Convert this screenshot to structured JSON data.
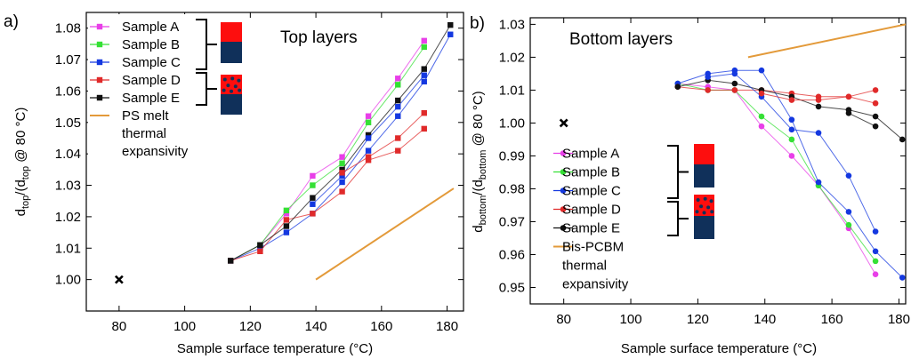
{
  "chart_data": [
    {
      "type": "line",
      "panel_label": "a)",
      "title": "Top layers",
      "xlabel": "Sample surface temperature (°C)",
      "ylabel": {
        "d1": "d",
        "s1": "top",
        "m": "/(d",
        "s2": "top",
        "tail": " @ 80 °C)"
      },
      "xlim": [
        70,
        185
      ],
      "ylim": [
        0.99,
        1.085
      ],
      "x_ticks": [
        80,
        100,
        120,
        140,
        160,
        180
      ],
      "y_ticks": [
        1.0,
        1.01,
        1.02,
        1.03,
        1.04,
        1.05,
        1.06,
        1.07,
        1.08
      ],
      "y_decimals": 2,
      "grid": false,
      "legend_position": "top-left",
      "reference_point": {
        "x": 80,
        "y": 1.0,
        "marker": "x"
      },
      "series": [
        {
          "name": "Sample A",
          "color": "#e83fe8",
          "marker": "square",
          "points": [
            [
              114,
              1.006
            ],
            [
              123,
              1.011
            ],
            [
              131,
              1.021
            ],
            [
              139,
              1.033
            ],
            [
              148,
              1.039
            ],
            [
              156,
              1.052
            ],
            [
              165,
              1.064
            ],
            [
              173,
              1.076
            ]
          ]
        },
        {
          "name": "Sample B",
          "color": "#35e035",
          "marker": "square",
          "points": [
            [
              114,
              1.006
            ],
            [
              123,
              1.011
            ],
            [
              131,
              1.022
            ],
            [
              139,
              1.03
            ],
            [
              148,
              1.037
            ],
            [
              156,
              1.05
            ],
            [
              165,
              1.062
            ],
            [
              173,
              1.074
            ]
          ]
        },
        {
          "name": "Sample C",
          "color": "#1438e0",
          "marker": "square",
          "points": [
            [
              114,
              1.006
            ],
            [
              123,
              1.01
            ],
            [
              131,
              1.015
            ],
            [
              139,
              1.021
            ],
            [
              148,
              1.031
            ],
            [
              156,
              1.041
            ],
            [
              165,
              1.052
            ],
            [
              173,
              1.063
            ],
            [
              181,
              1.078
            ]
          ]
        },
        {
          "name": "Sample D",
          "color": "#e02a2a",
          "marker": "square",
          "points": [
            [
              114,
              1.006
            ],
            [
              123,
              1.009
            ],
            [
              131,
              1.019
            ],
            [
              139,
              1.021
            ],
            [
              148,
              1.028
            ],
            [
              156,
              1.038
            ],
            [
              165,
              1.041
            ],
            [
              173,
              1.048
            ]
          ]
        },
        {
          "name": "Sample E",
          "color": "#111111",
          "marker": "square",
          "points": [
            [
              114,
              1.006
            ],
            [
              123,
              1.011
            ],
            [
              131,
              1.017
            ],
            [
              139,
              1.026
            ],
            [
              148,
              1.035
            ],
            [
              156,
              1.046
            ],
            [
              165,
              1.057
            ],
            [
              173,
              1.067
            ],
            [
              181,
              1.081
            ]
          ]
        }
      ],
      "extra_series": [
        {
          "name": "Sample C",
          "color": "#1438e0",
          "points": [
            [
              139,
              1.024
            ],
            [
              148,
              1.033
            ],
            [
              156,
              1.045
            ],
            [
              165,
              1.055
            ],
            [
              173,
              1.065
            ]
          ]
        },
        {
          "name": "Sample D",
          "color": "#e02a2a",
          "points": [
            [
              148,
              1.034
            ],
            [
              156,
              1.039
            ],
            [
              165,
              1.045
            ],
            [
              173,
              1.053
            ]
          ]
        }
      ],
      "reference_line": {
        "name": "PS melt thermal expansivity",
        "name_lines": [
          "PS melt",
          "thermal",
          "expansivity"
        ],
        "color": "#e39a3a",
        "points": [
          [
            140,
            1.0
          ],
          [
            182,
            1.029
          ]
        ]
      }
    },
    {
      "type": "line",
      "panel_label": "b)",
      "title": "Bottom layers",
      "xlabel": "Sample surface temperature (°C)",
      "ylabel": {
        "d1": "d",
        "s1": "bottom",
        "m": "/(d",
        "s2": "bottom",
        "tail": " @ 80 °C)"
      },
      "xlim": [
        70,
        182
      ],
      "ylim": [
        0.945,
        1.032
      ],
      "x_ticks": [
        80,
        100,
        120,
        140,
        160,
        180
      ],
      "y_ticks": [
        0.95,
        0.96,
        0.97,
        0.98,
        0.99,
        1.0,
        1.01,
        1.02,
        1.03
      ],
      "y_decimals": 2,
      "grid": false,
      "legend_position": "bottom-left",
      "reference_point": {
        "x": 80,
        "y": 1.0,
        "marker": "x"
      },
      "series": [
        {
          "name": "Sample A",
          "color": "#e83fe8",
          "marker": "circle",
          "points": [
            [
              114,
              1.012
            ],
            [
              123,
              1.011
            ],
            [
              131,
              1.01
            ],
            [
              139,
              0.999
            ],
            [
              148,
              0.99
            ],
            [
              156,
              0.981
            ],
            [
              165,
              0.968
            ],
            [
              173,
              0.954
            ]
          ]
        },
        {
          "name": "Sample B",
          "color": "#35e035",
          "marker": "circle",
          "points": [
            [
              114,
              1.012
            ],
            [
              123,
              1.01
            ],
            [
              131,
              1.01
            ],
            [
              139,
              1.002
            ],
            [
              148,
              0.995
            ],
            [
              156,
              0.981
            ],
            [
              165,
              0.969
            ],
            [
              173,
              0.958
            ]
          ]
        },
        {
          "name": "Sample C",
          "color": "#1438e0",
          "marker": "circle",
          "points": [
            [
              114,
              1.012
            ],
            [
              123,
              1.015
            ],
            [
              131,
              1.016
            ],
            [
              139,
              1.016
            ],
            [
              148,
              1.001
            ],
            [
              156,
              0.982
            ],
            [
              165,
              0.973
            ],
            [
              173,
              0.961
            ],
            [
              181,
              0.953
            ]
          ]
        },
        {
          "name": "Sample D",
          "color": "#e02a2a",
          "marker": "circle",
          "points": [
            [
              114,
              1.011
            ],
            [
              123,
              1.01
            ],
            [
              131,
              1.01
            ],
            [
              139,
              1.01
            ],
            [
              148,
              1.009
            ],
            [
              156,
              1.008
            ],
            [
              165,
              1.008
            ],
            [
              173,
              1.01
            ]
          ]
        },
        {
          "name": "Sample E",
          "color": "#111111",
          "marker": "circle",
          "points": [
            [
              114,
              1.011
            ],
            [
              123,
              1.013
            ],
            [
              131,
              1.012
            ],
            [
              139,
              1.01
            ],
            [
              148,
              1.008
            ],
            [
              156,
              1.005
            ],
            [
              165,
              1.004
            ],
            [
              173,
              1.002
            ],
            [
              181,
              0.995
            ]
          ]
        }
      ],
      "extra_series": [
        {
          "name": "Sample C",
          "color": "#1438e0",
          "points": [
            [
              123,
              1.014
            ],
            [
              131,
              1.015
            ],
            [
              139,
              1.008
            ],
            [
              148,
              0.998
            ],
            [
              156,
              0.997
            ],
            [
              165,
              0.984
            ],
            [
              173,
              0.967
            ]
          ]
        },
        {
          "name": "Sample D",
          "color": "#e02a2a",
          "points": [
            [
              139,
              1.009
            ],
            [
              148,
              1.007
            ],
            [
              156,
              1.007
            ],
            [
              165,
              1.008
            ],
            [
              173,
              1.006
            ]
          ]
        },
        {
          "name": "Sample E",
          "color": "#111111",
          "points": [
            [
              165,
              1.003
            ],
            [
              173,
              0.999
            ]
          ]
        }
      ],
      "reference_line": {
        "name": "Bis-PCBM thermal expansivity",
        "name_lines": [
          "Bis-PCBM",
          "thermal",
          "expansivity"
        ],
        "color": "#e39a3a",
        "points": [
          [
            135,
            1.02
          ],
          [
            182,
            1.03
          ]
        ]
      }
    }
  ],
  "colors": {
    "layer_red": "#fd0e0e",
    "layer_navy": "#10305a",
    "reference_marker": "#000000"
  }
}
